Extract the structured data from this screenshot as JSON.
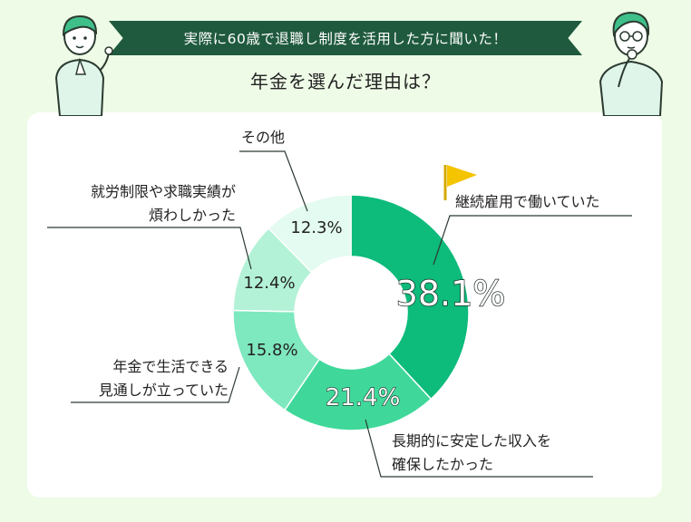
{
  "header": {
    "banner": "実際に60歳で退職し制度を活用した方に聞いた！",
    "title": "年金を選んだ理由は？"
  },
  "colors": {
    "banner": "#1f5a3e",
    "page_bg": "#eefbe6",
    "flag": "#f5c400",
    "series": [
      "#0dbb7b",
      "#3fd89a",
      "#7ee8bf",
      "#b3f2d6",
      "#e3fbf0"
    ]
  },
  "chart_data": {
    "type": "pie",
    "style": "donut",
    "title": "年金を選んだ理由は？",
    "categories": [
      "継続雇用で働いていた",
      "長期的に安定した収入を確保したかった",
      "年金で生活できる見通しが立っていた",
      "就労制限や求職実績が煩わしかった",
      "その他"
    ],
    "category_lines": [
      [
        "継続雇用で働いていた"
      ],
      [
        "長期的に安定した収入を",
        "確保したかった"
      ],
      [
        "年金で生活できる",
        "見通しが立っていた"
      ],
      [
        "就労制限や求職実績が",
        "煩わしかった"
      ],
      [
        "その他"
      ]
    ],
    "values": [
      38.1,
      21.4,
      15.8,
      12.4,
      12.3
    ],
    "labels": [
      "38.1%",
      "21.4%",
      "15.8%",
      "12.4%",
      "12.3%"
    ],
    "unit": "%",
    "legend": "none"
  }
}
